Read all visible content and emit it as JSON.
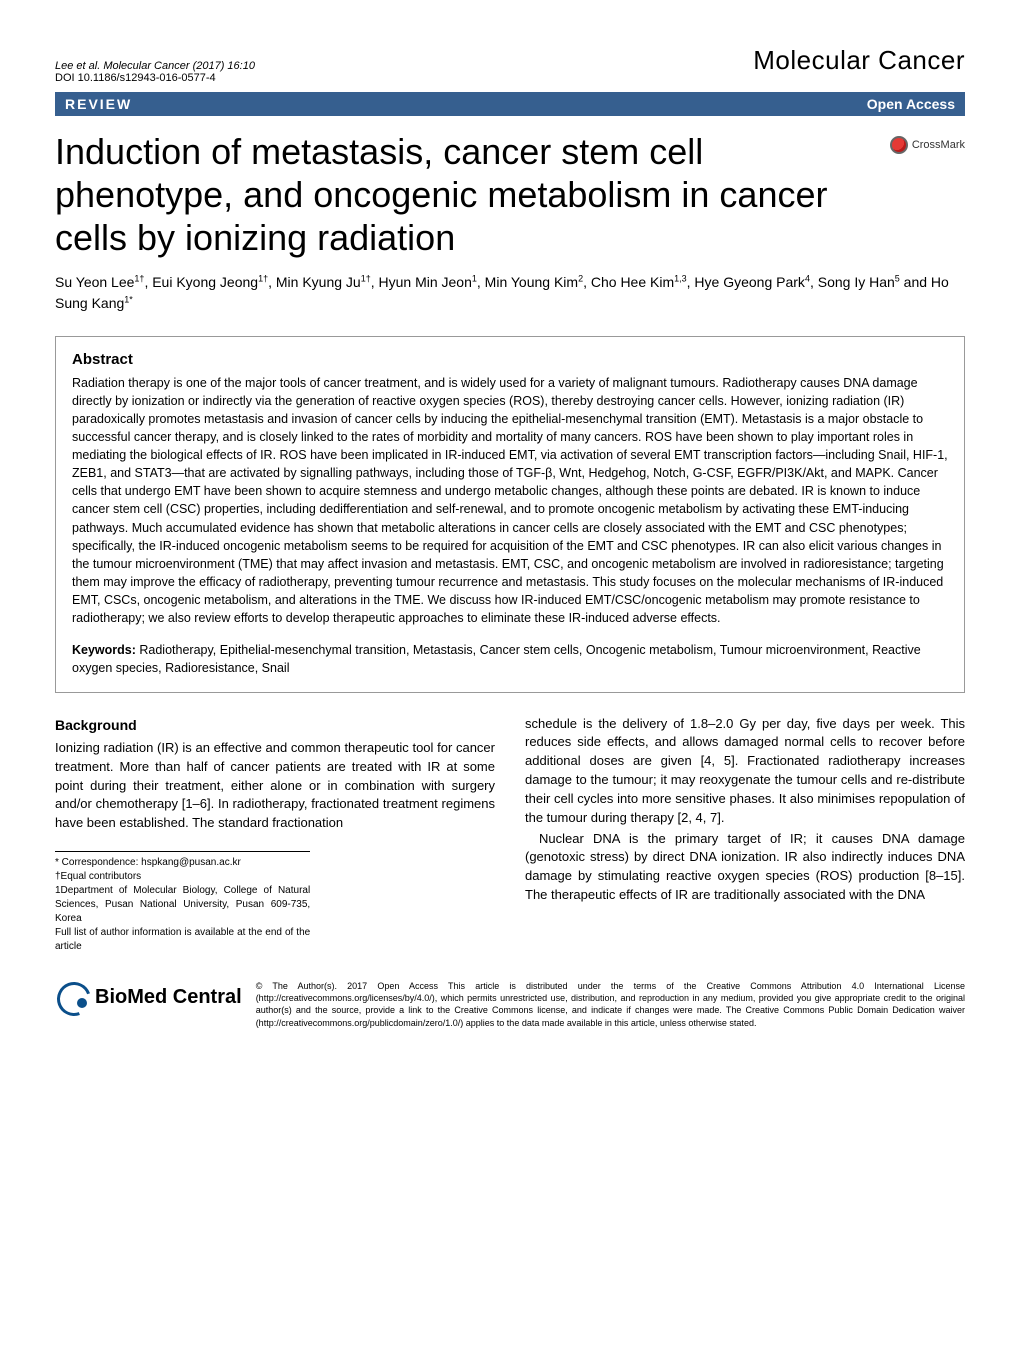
{
  "header": {
    "citation": "Lee et al. Molecular Cancer  (2017) 16:10",
    "doi": "DOI 10.1186/s12943-016-0577-4",
    "journal": "Molecular Cancer"
  },
  "banner": {
    "left": "REVIEW",
    "right": "Open Access"
  },
  "title": "Induction of metastasis, cancer stem cell phenotype, and oncogenic metabolism in cancer cells by ionizing radiation",
  "crossmark_label": "CrossMark",
  "authors_html": "Su Yeon Lee<sup>1†</sup>, Eui Kyong Jeong<sup>1†</sup>, Min Kyung Ju<sup>1†</sup>, Hyun Min Jeon<sup>1</sup>, Min Young Kim<sup>2</sup>, Cho Hee Kim<sup>1,3</sup>, Hye Gyeong Park<sup>4</sup>, Song Iy Han<sup>5</sup> and Ho Sung Kang<sup>1*</sup>",
  "abstract": {
    "heading": "Abstract",
    "text": "Radiation therapy is one of the major tools of cancer treatment, and is widely used for a variety of malignant tumours. Radiotherapy causes DNA damage directly by ionization or indirectly via the generation of reactive oxygen species (ROS), thereby destroying cancer cells. However, ionizing radiation (IR) paradoxically promotes metastasis and invasion of cancer cells by inducing the epithelial-mesenchymal transition (EMT). Metastasis is a major obstacle to successful cancer therapy, and is closely linked to the rates of morbidity and mortality of many cancers. ROS have been shown to play important roles in mediating the biological effects of IR. ROS have been implicated in IR-induced EMT, via activation of several EMT transcription factors—including Snail, HIF-1, ZEB1, and STAT3—that are activated by signalling pathways, including those of TGF-β, Wnt, Hedgehog, Notch, G-CSF, EGFR/PI3K/Akt, and MAPK. Cancer cells that undergo EMT have been shown to acquire stemness and undergo metabolic changes, although these points are debated. IR is known to induce cancer stem cell (CSC) properties, including dedifferentiation and self-renewal, and to promote oncogenic metabolism by activating these EMT-inducing pathways. Much accumulated evidence has shown that metabolic alterations in cancer cells are closely associated with the EMT and CSC phenotypes; specifically, the IR-induced oncogenic metabolism seems to be required for acquisition of the EMT and CSC phenotypes. IR can also elicit various changes in the tumour microenvironment (TME) that may affect invasion and metastasis. EMT, CSC, and oncogenic metabolism are involved in radioresistance; targeting them may improve the efficacy of radiotherapy, preventing tumour recurrence and metastasis. This study focuses on the molecular mechanisms of IR-induced EMT, CSCs, oncogenic metabolism, and alterations in the TME. We discuss how IR-induced EMT/CSC/oncogenic metabolism may promote resistance to radiotherapy; we also review efforts to develop therapeutic approaches to eliminate these IR-induced adverse effects.",
    "keywords_label": "Keywords:",
    "keywords": " Radiotherapy, Epithelial-mesenchymal transition, Metastasis, Cancer stem cells, Oncogenic metabolism, Tumour microenvironment, Reactive oxygen species, Radioresistance, Snail"
  },
  "body": {
    "heading": "Background",
    "col1": "Ionizing radiation (IR) is an effective and common therapeutic tool for cancer treatment. More than half of cancer patients are treated with IR at some point during their treatment, either alone or in combination with surgery and/or chemotherapy [1–6]. In radiotherapy, fractionated treatment regimens have been established. The standard fractionation",
    "col2a": "schedule is the delivery of 1.8–2.0 Gy per day, five days per week. This reduces side effects, and allows damaged normal cells to recover before additional doses are given [4, 5]. Fractionated radiotherapy increases damage to the tumour; it may reoxygenate the tumour cells and re-distribute their cell cycles into more sensitive phases. It also minimises repopulation of the tumour during therapy [2, 4, 7].",
    "col2b": "Nuclear DNA is the primary target of IR; it causes DNA damage (genotoxic stress) by direct DNA ionization. IR also indirectly induces DNA damage by stimulating reactive oxygen species (ROS) production [8–15]. The therapeutic effects of IR are traditionally associated with the DNA"
  },
  "footnotes": {
    "correspondence": "* Correspondence: hspkang@pusan.ac.kr",
    "equal": "†Equal contributors",
    "dept": "1Department of Molecular Biology, College of Natural Sciences, Pusan National University, Pusan 609-735, Korea",
    "full": "Full list of author information is available at the end of the article"
  },
  "footer": {
    "bmc_bold": "BioMed",
    "bmc_rest": " Central",
    "license": "© The Author(s). 2017 Open Access This article is distributed under the terms of the Creative Commons Attribution 4.0 International License (http://creativecommons.org/licenses/by/4.0/), which permits unrestricted use, distribution, and reproduction in any medium, provided you give appropriate credit to the original author(s) and the source, provide a link to the Creative Commons license, and indicate if changes were made. The Creative Commons Public Domain Dedication waiver (http://creativecommons.org/publicdomain/zero/1.0/) applies to the data made available in this article, unless otherwise stated."
  },
  "colors": {
    "banner_bg": "#365f8f",
    "banner_text": "#ffffff",
    "border": "#999999"
  }
}
